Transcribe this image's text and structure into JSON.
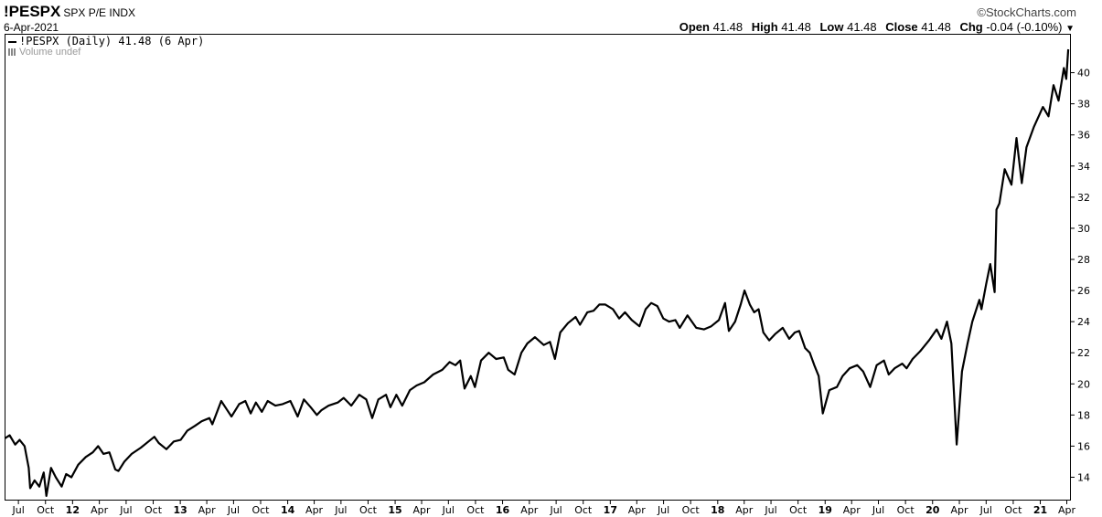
{
  "header": {
    "symbol": "!PESPX",
    "name": "SPX P/E INDX",
    "date": "6-Apr-2021",
    "brand": "StockCharts.com",
    "brand_icon": "copyright-icon",
    "open_label": "Open",
    "open_value": "41.48",
    "high_label": "High",
    "high_value": "41.48",
    "low_label": "Low",
    "low_value": "41.48",
    "close_label": "Close",
    "close_value": "41.48",
    "chg_label": "Chg",
    "chg_value": "-0.04 (-0.10%)",
    "menu_icon": "dropdown-arrow-icon"
  },
  "legend": {
    "series_label": "!PESPX (Daily) 41.48 (6 Apr)",
    "volume_label": "Volume undef"
  },
  "chart_data": {
    "type": "line",
    "ylim": [
      12.5,
      42.5
    ],
    "xlim": [
      "2011-05-15",
      "2021-04-15"
    ],
    "yticks": [
      14,
      16,
      18,
      20,
      22,
      24,
      26,
      28,
      30,
      32,
      34,
      36,
      38,
      40
    ],
    "xticks": [
      {
        "date": "2011-07-01",
        "label": "Jul",
        "year": false
      },
      {
        "date": "2011-10-01",
        "label": "Oct",
        "year": false
      },
      {
        "date": "2012-01-01",
        "label": "12",
        "year": true
      },
      {
        "date": "2012-04-01",
        "label": "Apr",
        "year": false
      },
      {
        "date": "2012-07-01",
        "label": "Jul",
        "year": false
      },
      {
        "date": "2012-10-01",
        "label": "Oct",
        "year": false
      },
      {
        "date": "2013-01-01",
        "label": "13",
        "year": true
      },
      {
        "date": "2013-04-01",
        "label": "Apr",
        "year": false
      },
      {
        "date": "2013-07-01",
        "label": "Jul",
        "year": false
      },
      {
        "date": "2013-10-01",
        "label": "Oct",
        "year": false
      },
      {
        "date": "2014-01-01",
        "label": "14",
        "year": true
      },
      {
        "date": "2014-04-01",
        "label": "Apr",
        "year": false
      },
      {
        "date": "2014-07-01",
        "label": "Jul",
        "year": false
      },
      {
        "date": "2014-10-01",
        "label": "Oct",
        "year": false
      },
      {
        "date": "2015-01-01",
        "label": "15",
        "year": true
      },
      {
        "date": "2015-04-01",
        "label": "Apr",
        "year": false
      },
      {
        "date": "2015-07-01",
        "label": "Jul",
        "year": false
      },
      {
        "date": "2015-10-01",
        "label": "Oct",
        "year": false
      },
      {
        "date": "2016-01-01",
        "label": "16",
        "year": true
      },
      {
        "date": "2016-04-01",
        "label": "Apr",
        "year": false
      },
      {
        "date": "2016-07-01",
        "label": "Jul",
        "year": false
      },
      {
        "date": "2016-10-01",
        "label": "Oct",
        "year": false
      },
      {
        "date": "2017-01-01",
        "label": "17",
        "year": true
      },
      {
        "date": "2017-04-01",
        "label": "Apr",
        "year": false
      },
      {
        "date": "2017-07-01",
        "label": "Jul",
        "year": false
      },
      {
        "date": "2017-10-01",
        "label": "Oct",
        "year": false
      },
      {
        "date": "2018-01-01",
        "label": "18",
        "year": true
      },
      {
        "date": "2018-04-01",
        "label": "Apr",
        "year": false
      },
      {
        "date": "2018-07-01",
        "label": "Jul",
        "year": false
      },
      {
        "date": "2018-10-01",
        "label": "Oct",
        "year": false
      },
      {
        "date": "2019-01-01",
        "label": "19",
        "year": true
      },
      {
        "date": "2019-04-01",
        "label": "Apr",
        "year": false
      },
      {
        "date": "2019-07-01",
        "label": "Jul",
        "year": false
      },
      {
        "date": "2019-10-01",
        "label": "Oct",
        "year": false
      },
      {
        "date": "2020-01-01",
        "label": "20",
        "year": true
      },
      {
        "date": "2020-04-01",
        "label": "Apr",
        "year": false
      },
      {
        "date": "2020-07-01",
        "label": "Jul",
        "year": false
      },
      {
        "date": "2020-10-01",
        "label": "Oct",
        "year": false
      },
      {
        "date": "2021-01-01",
        "label": "21",
        "year": true
      },
      {
        "date": "2021-04-01",
        "label": "Apr",
        "year": false
      }
    ],
    "series": [
      {
        "points": [
          [
            "2011-05-16",
            16.5
          ],
          [
            "2011-06-01",
            16.7
          ],
          [
            "2011-06-20",
            16.1
          ],
          [
            "2011-07-05",
            16.4
          ],
          [
            "2011-07-22",
            16.0
          ],
          [
            "2011-08-05",
            14.6
          ],
          [
            "2011-08-10",
            13.3
          ],
          [
            "2011-08-25",
            13.8
          ],
          [
            "2011-09-10",
            13.4
          ],
          [
            "2011-09-25",
            14.3
          ],
          [
            "2011-10-04",
            12.8
          ],
          [
            "2011-10-20",
            14.6
          ],
          [
            "2011-11-05",
            14.0
          ],
          [
            "2011-11-25",
            13.4
          ],
          [
            "2011-12-10",
            14.2
          ],
          [
            "2011-12-28",
            14.0
          ],
          [
            "2012-01-20",
            14.8
          ],
          [
            "2012-02-15",
            15.3
          ],
          [
            "2012-03-10",
            15.6
          ],
          [
            "2012-03-28",
            16.0
          ],
          [
            "2012-04-15",
            15.5
          ],
          [
            "2012-05-05",
            15.6
          ],
          [
            "2012-05-25",
            14.5
          ],
          [
            "2012-06-05",
            14.4
          ],
          [
            "2012-06-25",
            15.0
          ],
          [
            "2012-07-20",
            15.5
          ],
          [
            "2012-08-20",
            15.9
          ],
          [
            "2012-09-15",
            16.3
          ],
          [
            "2012-10-05",
            16.6
          ],
          [
            "2012-10-20",
            16.2
          ],
          [
            "2012-11-15",
            15.8
          ],
          [
            "2012-12-10",
            16.3
          ],
          [
            "2013-01-02",
            16.4
          ],
          [
            "2013-01-25",
            17.0
          ],
          [
            "2013-02-20",
            17.3
          ],
          [
            "2013-03-15",
            17.6
          ],
          [
            "2013-04-10",
            17.8
          ],
          [
            "2013-04-20",
            17.4
          ],
          [
            "2013-05-20",
            18.9
          ],
          [
            "2013-06-10",
            18.3
          ],
          [
            "2013-06-24",
            17.9
          ],
          [
            "2013-07-20",
            18.7
          ],
          [
            "2013-08-10",
            18.9
          ],
          [
            "2013-08-28",
            18.1
          ],
          [
            "2013-09-15",
            18.8
          ],
          [
            "2013-10-05",
            18.2
          ],
          [
            "2013-10-25",
            18.9
          ],
          [
            "2013-11-20",
            18.6
          ],
          [
            "2013-12-15",
            18.7
          ],
          [
            "2014-01-10",
            18.9
          ],
          [
            "2014-02-04",
            17.9
          ],
          [
            "2014-02-25",
            19.0
          ],
          [
            "2014-03-20",
            18.5
          ],
          [
            "2014-04-10",
            18.0
          ],
          [
            "2014-04-25",
            18.3
          ],
          [
            "2014-05-20",
            18.6
          ],
          [
            "2014-06-20",
            18.8
          ],
          [
            "2014-07-10",
            19.1
          ],
          [
            "2014-08-05",
            18.6
          ],
          [
            "2014-09-01",
            19.3
          ],
          [
            "2014-09-25",
            19.0
          ],
          [
            "2014-10-15",
            17.8
          ],
          [
            "2014-11-05",
            19.0
          ],
          [
            "2014-12-01",
            19.3
          ],
          [
            "2014-12-16",
            18.5
          ],
          [
            "2015-01-05",
            19.3
          ],
          [
            "2015-01-25",
            18.6
          ],
          [
            "2015-02-20",
            19.6
          ],
          [
            "2015-03-15",
            19.9
          ],
          [
            "2015-04-10",
            20.1
          ],
          [
            "2015-05-10",
            20.6
          ],
          [
            "2015-06-10",
            20.9
          ],
          [
            "2015-07-05",
            21.4
          ],
          [
            "2015-07-25",
            21.2
          ],
          [
            "2015-08-10",
            21.5
          ],
          [
            "2015-08-25",
            19.7
          ],
          [
            "2015-09-15",
            20.5
          ],
          [
            "2015-09-29",
            19.8
          ],
          [
            "2015-10-20",
            21.5
          ],
          [
            "2015-11-15",
            22.0
          ],
          [
            "2015-12-10",
            21.6
          ],
          [
            "2016-01-05",
            21.7
          ],
          [
            "2016-01-20",
            20.9
          ],
          [
            "2016-02-11",
            20.6
          ],
          [
            "2016-03-05",
            22.0
          ],
          [
            "2016-03-25",
            22.6
          ],
          [
            "2016-04-20",
            23.0
          ],
          [
            "2016-05-20",
            22.5
          ],
          [
            "2016-06-10",
            22.7
          ],
          [
            "2016-06-27",
            21.6
          ],
          [
            "2016-07-15",
            23.3
          ],
          [
            "2016-08-10",
            23.9
          ],
          [
            "2016-09-05",
            24.3
          ],
          [
            "2016-09-20",
            23.8
          ],
          [
            "2016-10-15",
            24.6
          ],
          [
            "2016-11-05",
            24.7
          ],
          [
            "2016-11-25",
            25.1
          ],
          [
            "2016-12-15",
            25.1
          ],
          [
            "2017-01-10",
            24.8
          ],
          [
            "2017-01-31",
            24.2
          ],
          [
            "2017-02-20",
            24.6
          ],
          [
            "2017-03-15",
            24.1
          ],
          [
            "2017-04-10",
            23.7
          ],
          [
            "2017-05-01",
            24.8
          ],
          [
            "2017-05-20",
            25.2
          ],
          [
            "2017-06-10",
            25.0
          ],
          [
            "2017-06-30",
            24.2
          ],
          [
            "2017-07-20",
            24.0
          ],
          [
            "2017-08-10",
            24.1
          ],
          [
            "2017-08-25",
            23.6
          ],
          [
            "2017-09-20",
            24.4
          ],
          [
            "2017-10-20",
            23.6
          ],
          [
            "2017-11-15",
            23.5
          ],
          [
            "2017-12-10",
            23.7
          ],
          [
            "2018-01-05",
            24.1
          ],
          [
            "2018-01-26",
            25.2
          ],
          [
            "2018-02-08",
            23.4
          ],
          [
            "2018-03-01",
            24.0
          ],
          [
            "2018-03-20",
            25.1
          ],
          [
            "2018-04-02",
            26.0
          ],
          [
            "2018-04-20",
            25.1
          ],
          [
            "2018-05-05",
            24.6
          ],
          [
            "2018-05-20",
            24.8
          ],
          [
            "2018-06-05",
            23.3
          ],
          [
            "2018-06-25",
            22.8
          ],
          [
            "2018-07-15",
            23.2
          ],
          [
            "2018-08-10",
            23.6
          ],
          [
            "2018-09-01",
            22.9
          ],
          [
            "2018-09-20",
            23.3
          ],
          [
            "2018-10-05",
            23.4
          ],
          [
            "2018-10-25",
            22.3
          ],
          [
            "2018-11-10",
            22.0
          ],
          [
            "2018-11-25",
            21.2
          ],
          [
            "2018-12-10",
            20.5
          ],
          [
            "2018-12-24",
            18.1
          ],
          [
            "2019-01-15",
            19.6
          ],
          [
            "2019-02-10",
            19.8
          ],
          [
            "2019-03-01",
            20.5
          ],
          [
            "2019-03-25",
            21.0
          ],
          [
            "2019-04-20",
            21.2
          ],
          [
            "2019-05-10",
            20.8
          ],
          [
            "2019-06-03",
            19.8
          ],
          [
            "2019-06-25",
            21.2
          ],
          [
            "2019-07-20",
            21.5
          ],
          [
            "2019-08-05",
            20.6
          ],
          [
            "2019-08-25",
            21.0
          ],
          [
            "2019-09-20",
            21.3
          ],
          [
            "2019-10-05",
            21.0
          ],
          [
            "2019-10-25",
            21.6
          ],
          [
            "2019-11-20",
            22.1
          ],
          [
            "2019-12-20",
            22.8
          ],
          [
            "2020-01-15",
            23.5
          ],
          [
            "2020-01-31",
            22.9
          ],
          [
            "2020-02-19",
            24.0
          ],
          [
            "2020-03-05",
            22.6
          ],
          [
            "2020-03-12",
            20.0
          ],
          [
            "2020-03-23",
            16.1
          ],
          [
            "2020-04-10",
            20.8
          ],
          [
            "2020-04-29",
            22.6
          ],
          [
            "2020-05-15",
            24.0
          ],
          [
            "2020-06-08",
            25.4
          ],
          [
            "2020-06-15",
            24.8
          ],
          [
            "2020-07-01",
            26.4
          ],
          [
            "2020-07-15",
            27.7
          ],
          [
            "2020-07-30",
            25.9
          ],
          [
            "2020-08-05",
            31.2
          ],
          [
            "2020-08-15",
            31.6
          ],
          [
            "2020-09-02",
            33.8
          ],
          [
            "2020-09-25",
            32.8
          ],
          [
            "2020-10-12",
            35.8
          ],
          [
            "2020-10-30",
            32.9
          ],
          [
            "2020-11-15",
            35.2
          ],
          [
            "2020-12-10",
            36.5
          ],
          [
            "2021-01-10",
            37.8
          ],
          [
            "2021-01-29",
            37.2
          ],
          [
            "2021-02-15",
            39.2
          ],
          [
            "2021-03-04",
            38.2
          ],
          [
            "2021-03-22",
            40.3
          ],
          [
            "2021-03-30",
            39.6
          ],
          [
            "2021-04-06",
            41.5
          ]
        ]
      }
    ]
  }
}
